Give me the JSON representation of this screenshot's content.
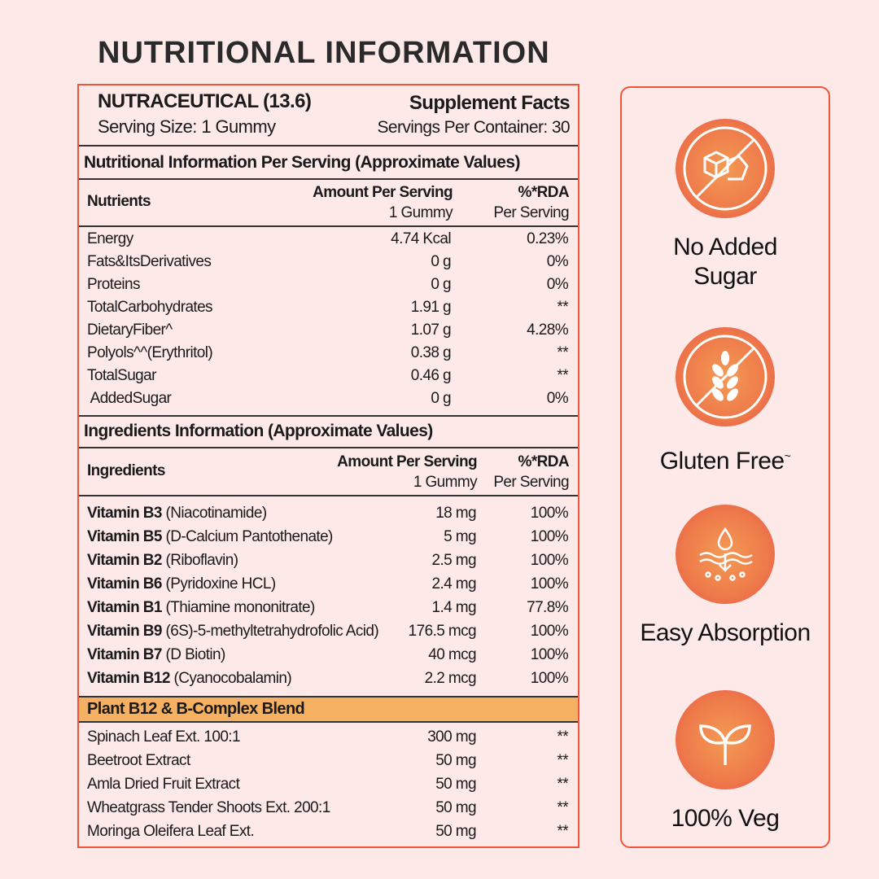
{
  "title": "NUTRITIONAL INFORMATION",
  "header": {
    "product": "NUTRACEUTICAL (13.6)",
    "serving_size": "Serving Size: 1 Gummy",
    "facts": "Supplement Facts",
    "servings_per_container": "Servings Per Container: 30"
  },
  "nutrition": {
    "section_title": "Nutritional Information Per Serving (Approximate Values)",
    "col_name": "Nutrients",
    "col_amount": "Amount Per Serving",
    "col_amount_sub": "1 Gummy",
    "col_rda": "%*RDA",
    "col_rda_sub": "Per Serving",
    "rows": [
      {
        "name": "Energy",
        "amount": "4.74 Kcal",
        "rda": "0.23%"
      },
      {
        "name": "Fats&ItsDerivatives",
        "amount": "0 g",
        "rda": "0%"
      },
      {
        "name": "Proteins",
        "amount": "0 g",
        "rda": "0%"
      },
      {
        "name": "TotalCarbohydrates",
        "amount": "1.91 g",
        "rda": "**"
      },
      {
        "name": "DietaryFiber^",
        "amount": "1.07 g",
        "rda": "4.28%"
      },
      {
        "name": "Polyols^^(Erythritol)",
        "amount": "0.38 g",
        "rda": "**"
      },
      {
        "name": "TotalSugar",
        "amount": "0.46 g",
        "rda": "**"
      },
      {
        "name": " AddedSugar",
        "amount": "0 g",
        "rda": "0%"
      }
    ]
  },
  "ingredients": {
    "section_title": "Ingredients Information (Approximate Values)",
    "col_name": "Ingredients",
    "col_amount": "Amount Per Serving",
    "col_amount_sub": "1 Gummy",
    "col_rda": "%*RDA",
    "col_rda_sub": "Per Serving",
    "rows": [
      {
        "name": "Vitamin B3",
        "detail": " (Niacotinamide)",
        "amount": "18 mg",
        "rda": "100%"
      },
      {
        "name": "Vitamin B5",
        "detail": " (D-Calcium Pantothenate)",
        "amount": "5 mg",
        "rda": "100%"
      },
      {
        "name": "Vitamin B2",
        "detail": " (Riboflavin)",
        "amount": "2.5 mg",
        "rda": "100%"
      },
      {
        "name": "Vitamin B6",
        "detail": " (Pyridoxine HCL)",
        "amount": "2.4 mg",
        "rda": "100%"
      },
      {
        "name": "Vitamin B1",
        "detail": " (Thiamine mononitrate)",
        "amount": "1.4 mg",
        "rda": "77.8%"
      },
      {
        "name": "Vitamin B9",
        "detail": " (6S)-5-methyltetrahydrofolic Acid)",
        "amount": "176.5 mcg",
        "rda": "100%"
      },
      {
        "name": "Vitamin B7",
        "detail": " (D Biotin)",
        "amount": "40 mcg",
        "rda": "100%"
      },
      {
        "name": "Vitamin B12",
        "detail": " (Cyanocobalamin)",
        "amount": "2.2 mcg",
        "rda": "100%"
      }
    ]
  },
  "blend": {
    "title": "Plant B12 & B-Complex Blend",
    "rows": [
      {
        "name": "Spinach Leaf Ext. 100:1",
        "amount": "300 mg",
        "rda": "**"
      },
      {
        "name": "Beetroot Extract",
        "amount": "50 mg",
        "rda": "**"
      },
      {
        "name": "Amla Dried Fruit Extract",
        "amount": "50 mg",
        "rda": "**"
      },
      {
        "name": "Wheatgrass Tender Shoots Ext. 200:1",
        "amount": "50 mg",
        "rda": "**"
      },
      {
        "name": "Moringa Oleifera Leaf Ext.",
        "amount": "50 mg",
        "rda": "**"
      }
    ]
  },
  "features": [
    {
      "icon": "no-sugar-icon",
      "line1": "No Added",
      "line2": "Sugar"
    },
    {
      "icon": "gluten-free-icon",
      "line1": "Gluten Free",
      "sup": "~"
    },
    {
      "icon": "easy-absorption-icon",
      "line1": "Easy Absorption"
    },
    {
      "icon": "veg-leaf-icon",
      "line1": "100% Veg"
    }
  ],
  "colors": {
    "background": "#fde9e8",
    "border": "#f0553a",
    "blend_header": "#f5b061",
    "icon_fill": "#ee7a4a"
  }
}
